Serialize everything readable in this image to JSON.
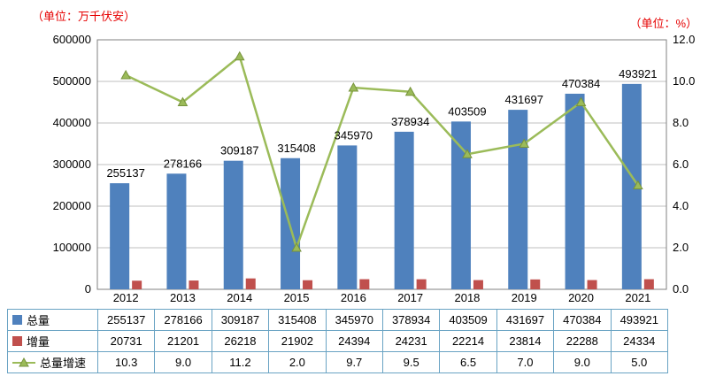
{
  "units": {
    "left": "（单位：万千伏安）",
    "right": "（单位：%）"
  },
  "colors": {
    "bar_total": "#4f81bd",
    "bar_increment": "#c0504d",
    "line_growth": "#9bbb59",
    "line_growth_edge": "#77933c",
    "gridline": "#bfbfbf",
    "plot_border": "#808080",
    "table_border": "#69a3c3",
    "unit_text": "#e60000",
    "text": "#000000"
  },
  "chart_data": {
    "type": "bar+line",
    "categories": [
      "2012",
      "2013",
      "2014",
      "2015",
      "2016",
      "2017",
      "2018",
      "2019",
      "2020",
      "2021"
    ],
    "series": [
      {
        "name": "总量",
        "type": "bar",
        "axis": "left",
        "labels": true,
        "values": [
          255137,
          278166,
          309187,
          315408,
          345970,
          378934,
          403509,
          431697,
          470384,
          493921
        ]
      },
      {
        "name": "增量",
        "type": "bar",
        "axis": "left",
        "labels": false,
        "values": [
          20731,
          21201,
          26218,
          21902,
          24394,
          24231,
          22214,
          23814,
          22288,
          24334
        ]
      },
      {
        "name": "总量增速",
        "type": "line",
        "axis": "right",
        "values": [
          10.3,
          9.0,
          11.2,
          2.0,
          9.7,
          9.5,
          6.5,
          7.0,
          9.0,
          5.0
        ]
      }
    ],
    "left_axis": {
      "min": 0,
      "max": 600000,
      "step": 100000
    },
    "right_axis": {
      "min": 0,
      "max": 12,
      "step": 2,
      "decimals": 1
    },
    "grid": true,
    "legend_position": "table-left"
  },
  "table": {
    "rows": [
      {
        "label": "总量",
        "legend": "square",
        "color": "#4f81bd",
        "values": [
          "255137",
          "278166",
          "309187",
          "315408",
          "345970",
          "378934",
          "403509",
          "431697",
          "470384",
          "493921"
        ]
      },
      {
        "label": "增量",
        "legend": "square",
        "color": "#c0504d",
        "values": [
          "20731",
          "21201",
          "26218",
          "21902",
          "24394",
          "24231",
          "22214",
          "23814",
          "22288",
          "24334"
        ]
      },
      {
        "label": "总量增速",
        "legend": "line-triangle",
        "color": "#9bbb59",
        "values": [
          "10.3",
          "9.0",
          "11.2",
          "2.0",
          "9.7",
          "9.5",
          "6.5",
          "7.0",
          "9.0",
          "5.0"
        ]
      }
    ]
  }
}
